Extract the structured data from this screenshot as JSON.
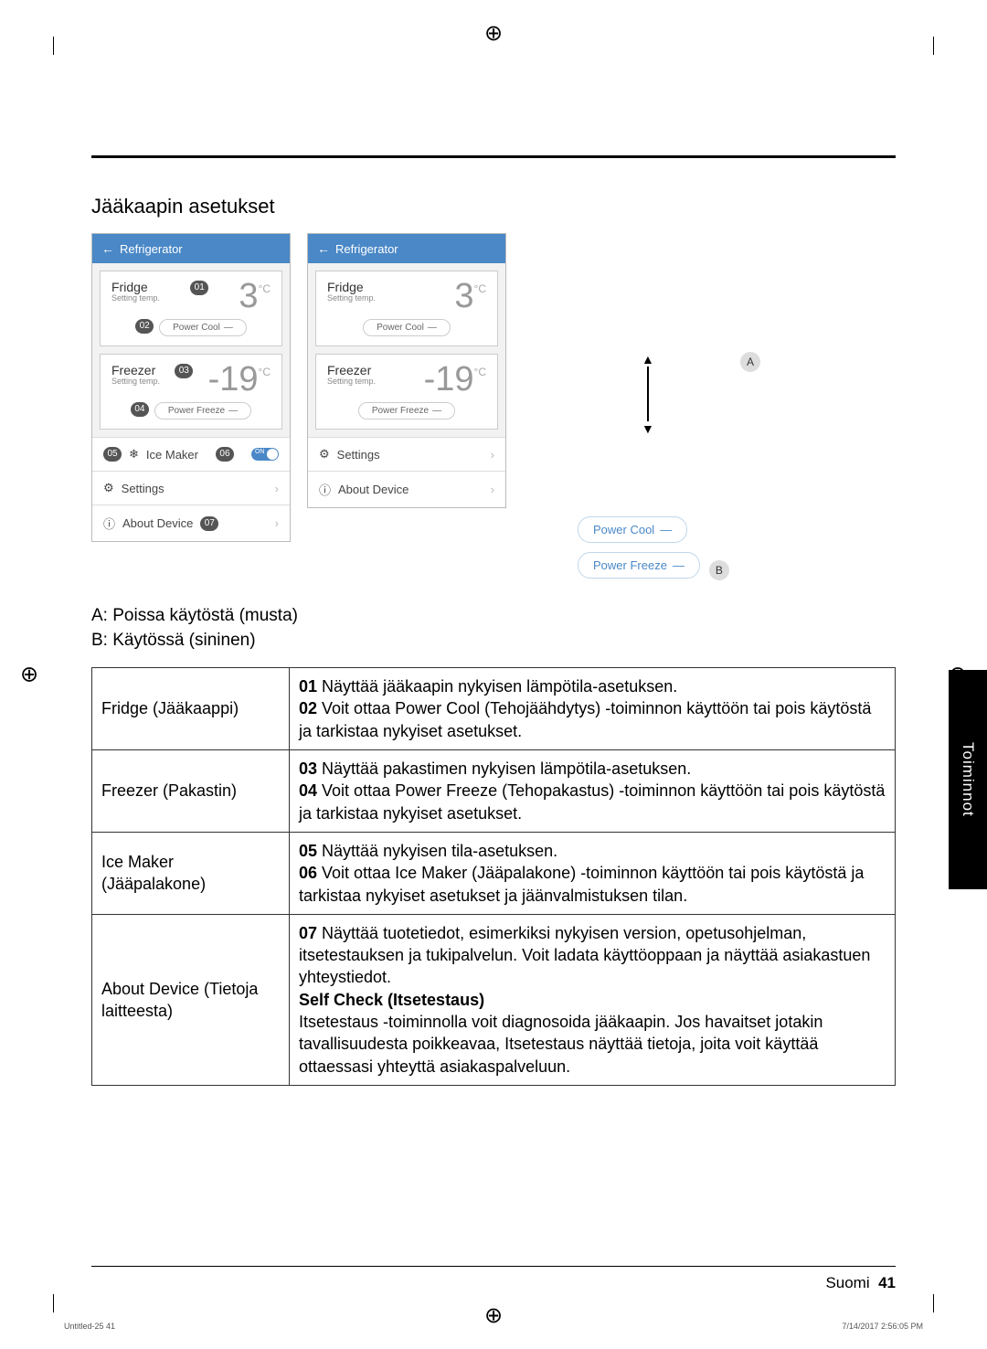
{
  "page": {
    "section_title": "Jääkaapin asetukset",
    "side_tab": "Toiminnot",
    "footer_lang": "Suomi",
    "footer_page": "41",
    "footer_doc_l": "Untitled-25   41",
    "footer_doc_r": "7/14/2017   2:56:05 PM"
  },
  "screen": {
    "header_back": "←",
    "header_title": "Refrigerator",
    "fridge_label": "Fridge",
    "setting_temp": "Setting temp.",
    "fridge_temp": "3",
    "unit": "°C",
    "power_cool": "Power Cool",
    "dash": "—",
    "freezer_label": "Freezer",
    "freezer_temp": "-19",
    "power_freeze": "Power Freeze",
    "ice_maker": "Ice Maker",
    "toggle_on": "ON",
    "settings": "Settings",
    "about_device": "About Device",
    "chev": "›"
  },
  "callouts": {
    "c01": "01",
    "c02": "02",
    "c03": "03",
    "c04": "04",
    "c05": "05",
    "c06": "06",
    "c07": "07"
  },
  "legend": {
    "tag_a": "A",
    "tag_b": "B",
    "line_a": "A: Poissa käytöstä (musta)",
    "line_b": "B: Käytössä (sininen)"
  },
  "table": {
    "r1k": "Fridge (Jääkaappi)",
    "r1v": "<b>01</b> Näyttää jääkaapin nykyisen lämpötila-asetuksen.<br><b>02</b> Voit ottaa Power Cool (Tehojäähdytys) -toiminnon käyttöön tai pois käytöstä ja tarkistaa nykyiset asetukset.",
    "r2k": "Freezer (Pakastin)",
    "r2v": "<b>03</b> Näyttää pakastimen nykyisen lämpötila-asetuksen.<br><b>04</b> Voit ottaa Power Freeze (Tehopakastus) -toiminnon käyttöön tai pois käytöstä ja tarkistaa nykyiset asetukset.",
    "r3k": "Ice Maker (Jääpalakone)",
    "r3v": "<b>05</b> Näyttää nykyisen tila-asetuksen.<br><b>06</b> Voit ottaa Ice Maker (Jääpalakone) -toiminnon käyttöön tai pois käytöstä ja tarkistaa nykyiset asetukset ja jäänvalmistuksen tilan.",
    "r4k": "About Device (Tietoja laitteesta)",
    "r4v": "<b>07</b> Näyttää tuotetiedot, esimerkiksi nykyisen version, opetusohjelman, itsetestauksen ja tukipalvelun. Voit ladata käyttöoppaan ja näyttää asiakastuen yhteystiedot.<br><b>Self Check (Itsetestaus)</b><br>Itsetestaus -toiminnolla voit diagnosoida jääkaapin. Jos havaitset jotakin tavallisuudesta poikkeavaa, Itsetestaus näyttää tietoja, joita voit käyttää ottaessasi yhteyttä asiakaspalveluun."
  }
}
